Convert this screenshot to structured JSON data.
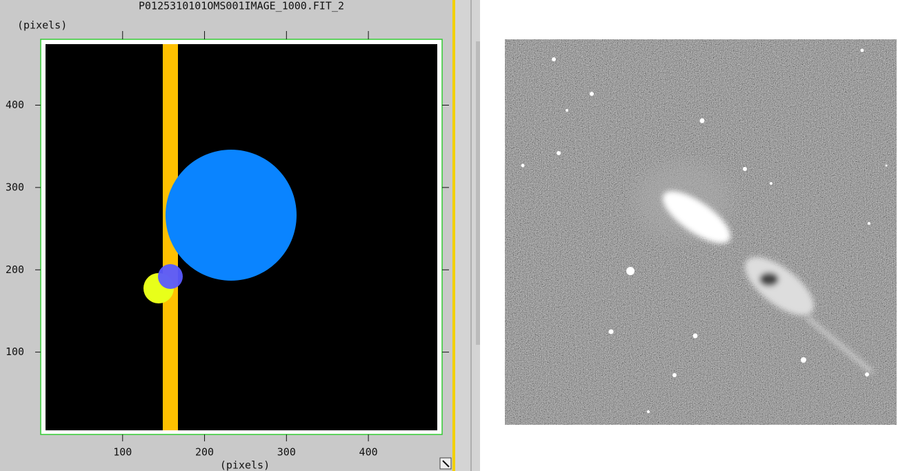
{
  "plot": {
    "title": "P0125310101OMS001IMAGE_1000.FIT_2",
    "x_label": "(pixels)",
    "y_label": "(pixels)",
    "xlim": [
      0,
      490
    ],
    "ylim": [
      0,
      480
    ],
    "xticks": [
      100,
      200,
      300,
      400
    ],
    "yticks": [
      100,
      200,
      300,
      400
    ]
  }
}
